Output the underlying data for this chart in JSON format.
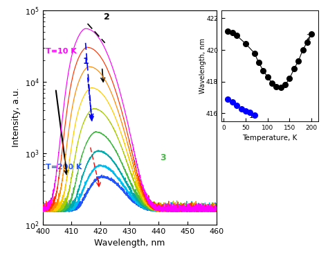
{
  "xlabel": "Wavelength, nm",
  "ylabel": "Intensity, a.u.",
  "xlim": [
    400,
    460
  ],
  "ylim_log": [
    100,
    100000
  ],
  "x_ticks": [
    400,
    410,
    420,
    430,
    440,
    450,
    460
  ],
  "colors": [
    "#FF00FF",
    "#FF3300",
    "#FF8800",
    "#FFCC00",
    "#AACC00",
    "#44BB44",
    "#00AAAA",
    "#00BBEE",
    "#2255FF"
  ],
  "temperatures": [
    10,
    30,
    50,
    70,
    100,
    120,
    150,
    170,
    200
  ],
  "peak_centers": [
    415.0,
    415.5,
    416.2,
    417.0,
    417.8,
    418.5,
    419.2,
    419.8,
    420.5
  ],
  "peak_amps": [
    55000,
    30000,
    16000,
    8000,
    4000,
    1800,
    900,
    500,
    300
  ],
  "sigma_main": 3.2,
  "noise_floor": 150,
  "label_T10K_color": "#FF00FF",
  "label_T200K_color": "#2255FF",
  "inset": {
    "xlim": [
      -5,
      215
    ],
    "ylim": [
      415.5,
      422.5
    ],
    "xticks": [
      0,
      50,
      100,
      150,
      200
    ],
    "yticks": [
      416,
      418,
      420,
      422
    ],
    "xlabel": "Temperature, K",
    "ylabel": "Wavelength, nm",
    "series1_temps": [
      10,
      20,
      30,
      40,
      50,
      60,
      70
    ],
    "series1_wavelengths": [
      416.9,
      416.7,
      416.5,
      416.3,
      416.15,
      416.05,
      415.9
    ],
    "series1_color": "#0000FF",
    "series2_temps": [
      10,
      20,
      30,
      50,
      70,
      80,
      90,
      100,
      110,
      120,
      130,
      140,
      150,
      160,
      170,
      180,
      190,
      200
    ],
    "series2_wavelengths": [
      421.2,
      421.1,
      420.9,
      420.4,
      419.8,
      419.2,
      418.7,
      418.3,
      417.9,
      417.7,
      417.65,
      417.8,
      418.2,
      418.8,
      419.3,
      420.0,
      420.5,
      421.0
    ],
    "series2_color": "#000000"
  }
}
